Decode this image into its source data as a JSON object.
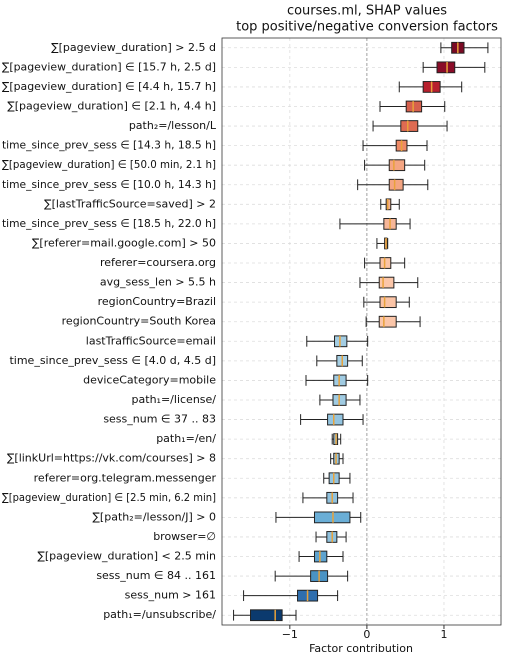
{
  "chart_data": {
    "type": "boxplot",
    "title": "courses.ml, SHAP values",
    "subtitle": "top positive/negative conversion factors",
    "xlabel": "Factor contribution",
    "xlim": [
      -1.88,
      1.74
    ],
    "xticks": [
      {
        "value": -1,
        "label": "−1"
      },
      0,
      1
    ],
    "grid": true,
    "categories": [
      "∑[pageview_duration] > 2.5 d",
      "∑[pageview_duration] ∈ [15.7 h, 2.5 d]",
      "∑[pageview_duration] ∈ [4.4 h, 15.7 h]",
      "∑[pageview_duration] ∈ [2.1 h, 4.4 h]",
      "path₂=/lesson/L",
      "time_since_prev_sess ∈ [14.3 h, 18.5 h]",
      "∑[pageview_duration] ∈ [50.0 min, 2.1 h]",
      "time_since_prev_sess ∈ [10.0 h, 14.3 h]",
      "∑[lastTrafficSource=saved] > 2",
      "time_since_prev_sess ∈ [18.5 h, 22.0 h]",
      "∑[referer=mail.google.com] > 50",
      "referer=coursera.org",
      "avg_sess_len > 5.5 h",
      "regionCountry=Brazil",
      "regionCountry=South Korea",
      "lastTrafficSource=email",
      "time_since_prev_sess ∈ [4.0 d, 4.5 d]",
      "deviceCategory=mobile",
      "path₁=/license/",
      "sess_num ∈ 37 .. 83",
      "path₁=/en/",
      "∑[linkUrl=https://vk.com/courses] > 8",
      "referer=org.telegram.messenger",
      "∑[pageview_duration] ∈ [2.5 min, 6.2 min]",
      "∑[path₂=/lesson/J] > 0",
      "browser=∅",
      "∑[pageview_duration] < 2.5 min",
      "sess_num ∈ 84 .. 161",
      "sess_num > 161",
      "path₁=/unsubscribe/"
    ],
    "boxes": [
      {
        "whislo": 0.96,
        "q1": 1.1,
        "med": 1.18,
        "q3": 1.26,
        "whishi": 1.57,
        "color": "#7a0a24"
      },
      {
        "whislo": 0.73,
        "q1": 0.91,
        "med": 1.04,
        "q3": 1.14,
        "whishi": 1.53,
        "color": "#8a0c28"
      },
      {
        "whislo": 0.42,
        "q1": 0.73,
        "med": 0.84,
        "q3": 0.95,
        "whishi": 1.23,
        "color": "#b8202e"
      },
      {
        "whislo": 0.17,
        "q1": 0.51,
        "med": 0.6,
        "q3": 0.71,
        "whishi": 1.01,
        "color": "#d6604d"
      },
      {
        "whislo": 0.08,
        "q1": 0.44,
        "med": 0.53,
        "q3": 0.66,
        "whishi": 1.04,
        "color": "#df6b52"
      },
      {
        "whislo": -0.05,
        "q1": 0.38,
        "med": 0.45,
        "q3": 0.52,
        "whishi": 0.78,
        "color": "#ee8a66"
      },
      {
        "whislo": -0.03,
        "q1": 0.29,
        "med": 0.35,
        "q3": 0.49,
        "whishi": 0.75,
        "color": "#f4a582"
      },
      {
        "whislo": -0.12,
        "q1": 0.29,
        "med": 0.36,
        "q3": 0.47,
        "whishi": 0.79,
        "color": "#f4a582"
      },
      {
        "whislo": 0.18,
        "q1": 0.25,
        "med": 0.27,
        "q3": 0.31,
        "whishi": 0.42,
        "color": "#f6b394"
      },
      {
        "whislo": -0.35,
        "q1": 0.22,
        "med": 0.3,
        "q3": 0.38,
        "whishi": 0.56,
        "color": "#f7b799"
      },
      {
        "whislo": 0.13,
        "q1": 0.23,
        "med": 0.25,
        "q3": 0.26,
        "whishi": 0.27,
        "color": "#f8bd9f"
      },
      {
        "whislo": -0.03,
        "q1": 0.17,
        "med": 0.23,
        "q3": 0.31,
        "whishi": 0.49,
        "color": "#fbc4a6"
      },
      {
        "whislo": -0.09,
        "q1": 0.16,
        "med": 0.21,
        "q3": 0.35,
        "whishi": 0.66,
        "color": "#fbc6a9"
      },
      {
        "whislo": -0.04,
        "q1": 0.17,
        "med": 0.23,
        "q3": 0.38,
        "whishi": 0.55,
        "color": "#fbc4a6"
      },
      {
        "whislo": -0.01,
        "q1": 0.16,
        "med": 0.22,
        "q3": 0.38,
        "whishi": 0.69,
        "color": "#fbc6a9"
      },
      {
        "whislo": -0.78,
        "q1": -0.42,
        "med": -0.35,
        "q3": -0.26,
        "whishi": 0.01,
        "color": "#a3cde3"
      },
      {
        "whislo": -0.65,
        "q1": -0.39,
        "med": -0.32,
        "q3": -0.25,
        "whishi": -0.06,
        "color": "#a6cfe4"
      },
      {
        "whislo": -0.79,
        "q1": -0.43,
        "med": -0.36,
        "q3": -0.27,
        "whishi": 0.01,
        "color": "#a0cbe2"
      },
      {
        "whislo": -0.61,
        "q1": -0.44,
        "med": -0.36,
        "q3": -0.27,
        "whishi": -0.09,
        "color": "#a0cbe2"
      },
      {
        "whislo": -0.86,
        "q1": -0.51,
        "med": -0.43,
        "q3": -0.31,
        "whishi": -0.05,
        "color": "#94c4df"
      },
      {
        "whislo": -0.45,
        "q1": -0.43,
        "med": -0.4,
        "q3": -0.38,
        "whishi": -0.34,
        "color": "#98c7e0"
      },
      {
        "whislo": -0.47,
        "q1": -0.43,
        "med": -0.4,
        "q3": -0.36,
        "whishi": -0.31,
        "color": "#98c7e0"
      },
      {
        "whislo": -0.56,
        "q1": -0.49,
        "med": -0.43,
        "q3": -0.36,
        "whishi": -0.22,
        "color": "#94c4df"
      },
      {
        "whislo": -0.83,
        "q1": -0.52,
        "med": -0.45,
        "q3": -0.38,
        "whishi": -0.18,
        "color": "#90c1dd"
      },
      {
        "whislo": -1.18,
        "q1": -0.68,
        "med": -0.44,
        "q3": -0.22,
        "whishi": -0.08,
        "color": "#6aaed6"
      },
      {
        "whislo": -0.66,
        "q1": -0.52,
        "med": -0.45,
        "q3": -0.39,
        "whishi": -0.27,
        "color": "#90c1dd"
      },
      {
        "whislo": -0.88,
        "q1": -0.68,
        "med": -0.61,
        "q3": -0.52,
        "whishi": -0.31,
        "color": "#5ea3cf"
      },
      {
        "whislo": -1.19,
        "q1": -0.73,
        "med": -0.62,
        "q3": -0.51,
        "whishi": -0.25,
        "color": "#4a93c4"
      },
      {
        "whislo": -1.6,
        "q1": -0.9,
        "med": -0.77,
        "q3": -0.64,
        "whishi": -0.38,
        "color": "#2e6eae"
      },
      {
        "whislo": -1.73,
        "q1": -1.51,
        "med": -1.19,
        "q3": -1.1,
        "whishi": -0.92,
        "color": "#0b3a6e"
      }
    ]
  }
}
